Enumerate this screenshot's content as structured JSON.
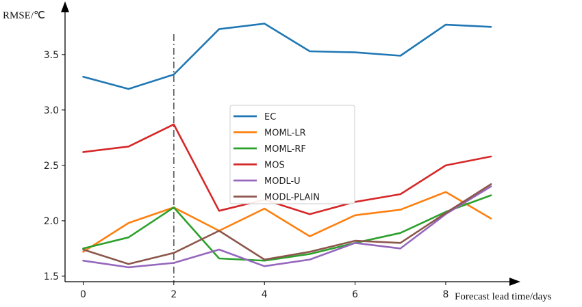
{
  "chart_data": {
    "type": "line",
    "xlabel": "Forecast lead time/days",
    "ylabel": "RMSE/℃",
    "x": [
      0,
      1,
      2,
      3,
      4,
      5,
      6,
      7,
      8,
      9
    ],
    "xlim": [
      -0.4,
      9.3
    ],
    "ylim": [
      1.45,
      3.82
    ],
    "xticks": [
      0,
      2,
      4,
      6,
      8
    ],
    "yticks": [
      1.5,
      2.0,
      2.5,
      3.0,
      3.5
    ],
    "xtick_labels": [
      "0",
      "2",
      "4",
      "6",
      "8"
    ],
    "ytick_labels": [
      "1.5",
      "2.0",
      "2.5",
      "3.0",
      "3.5"
    ],
    "grid": false,
    "legend_position": "center",
    "reference_line": {
      "x": 2,
      "style": "dash-dot",
      "color": "#666666"
    },
    "series": [
      {
        "name": "EC",
        "color": "#1f77b4",
        "values": [
          3.3,
          3.19,
          3.32,
          3.73,
          3.78,
          3.53,
          3.52,
          3.49,
          3.77,
          3.75
        ]
      },
      {
        "name": "MOML-LR",
        "color": "#ff7f0e",
        "values": [
          1.72,
          1.98,
          2.12,
          1.91,
          2.11,
          1.86,
          2.05,
          2.1,
          2.26,
          2.02
        ]
      },
      {
        "name": "MOML-RF",
        "color": "#2ca02c",
        "values": [
          1.75,
          1.85,
          2.12,
          1.66,
          1.64,
          1.7,
          1.8,
          1.89,
          2.08,
          2.23
        ]
      },
      {
        "name": "MOS",
        "color": "#d62728",
        "values": [
          2.62,
          2.67,
          2.87,
          2.09,
          2.19,
          2.06,
          2.17,
          2.24,
          2.5,
          2.58
        ]
      },
      {
        "name": "MODL-U",
        "color": "#9467bd",
        "values": [
          1.64,
          1.58,
          1.62,
          1.74,
          1.59,
          1.65,
          1.8,
          1.75,
          2.06,
          2.31
        ]
      },
      {
        "name": "MODL-PLAIN",
        "color": "#8c564b",
        "values": [
          1.74,
          1.61,
          1.71,
          1.91,
          1.65,
          1.72,
          1.82,
          1.8,
          2.07,
          2.33
        ]
      }
    ]
  }
}
